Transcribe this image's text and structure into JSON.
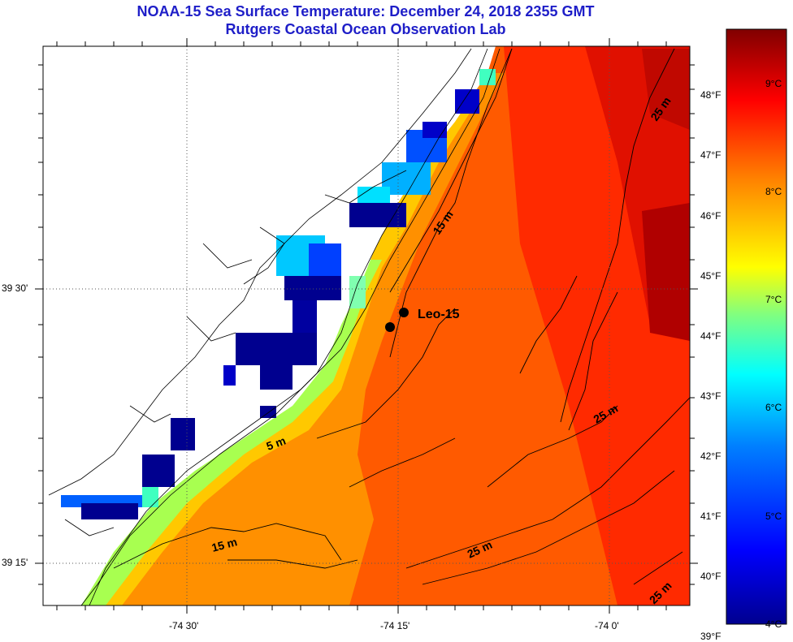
{
  "title": {
    "line1": "NOAA-15 Sea Surface Temperature:  December 24, 2018 2355 GMT",
    "line2": "Rutgers Coastal Ocean Observation Lab"
  },
  "axes": {
    "x_ticks": [
      "-74 30'",
      "-74 15'",
      "-74 0'"
    ],
    "y_ticks": [
      "39 30'",
      "39 15'"
    ]
  },
  "colorbar": {
    "fahrenheit": [
      "48°F",
      "47°F",
      "46°F",
      "45°F",
      "44°F",
      "43°F",
      "42°F",
      "41°F",
      "40°F",
      "39°F"
    ],
    "celsius": [
      "9°C",
      "8°C",
      "7°C",
      "6°C",
      "5°C",
      "4°C"
    ],
    "range_c": [
      4,
      9.5
    ],
    "colors": [
      "#00008f",
      "#0000ff",
      "#0080ff",
      "#00ffff",
      "#80ff80",
      "#ffff00",
      "#ff8000",
      "#ff0000",
      "#800000"
    ]
  },
  "station": {
    "label": "Leo-15"
  },
  "depth_labels": [
    "15 m",
    "15 m",
    "5 m",
    "25 m",
    "25 m",
    "25 m",
    "25 m"
  ],
  "colors": {
    "title": "#1e1ec8",
    "land": "#ffffff",
    "contour": "#000000"
  }
}
